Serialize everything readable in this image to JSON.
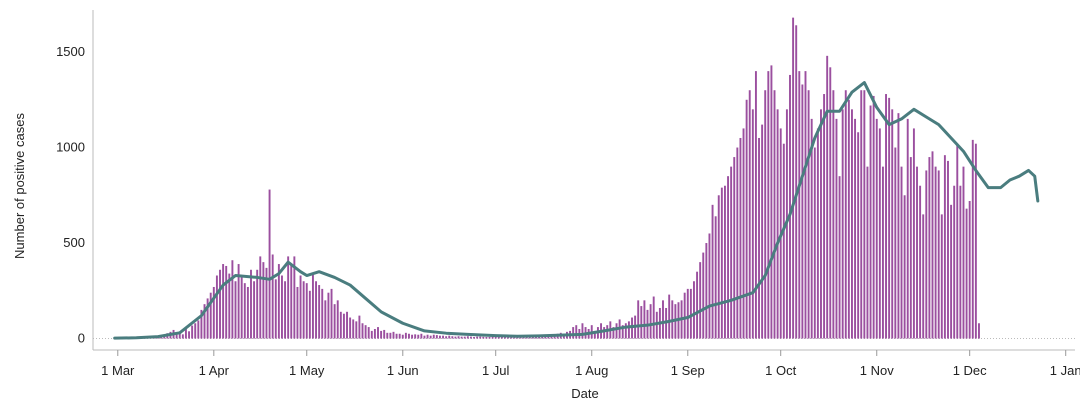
{
  "chart_data": {
    "type": "bar",
    "xlabel": "Date",
    "ylabel": "Number of positive cases",
    "xlim": [
      "2020-02-22",
      "2021-01-04"
    ],
    "ylim": [
      -60,
      1720
    ],
    "x_ticks": [
      {
        "date": "2020-03-01",
        "label": "1 Mar"
      },
      {
        "date": "2020-04-01",
        "label": "1 Apr"
      },
      {
        "date": "2020-05-01",
        "label": "1 May"
      },
      {
        "date": "2020-06-01",
        "label": "1 Jun"
      },
      {
        "date": "2020-07-01",
        "label": "1 Jul"
      },
      {
        "date": "2020-08-01",
        "label": "1 Aug"
      },
      {
        "date": "2020-09-01",
        "label": "1 Sep"
      },
      {
        "date": "2020-10-01",
        "label": "1 Oct"
      },
      {
        "date": "2020-11-01",
        "label": "1 Nov"
      },
      {
        "date": "2020-12-01",
        "label": "1 Dec"
      },
      {
        "date": "2021-01-01",
        "label": "1 Jan"
      }
    ],
    "y_ticks": [
      {
        "value": 0,
        "label": "0"
      },
      {
        "value": 500,
        "label": "500"
      },
      {
        "value": 1000,
        "label": "1000"
      },
      {
        "value": 1500,
        "label": "1500"
      }
    ],
    "series": [
      {
        "type": "bar",
        "color": "#9b4f9f",
        "start_date": "2020-02-29",
        "values": [
          2,
          3,
          3,
          3,
          4,
          4,
          5,
          5,
          6,
          6,
          7,
          8,
          8,
          9,
          10,
          12,
          18,
          28,
          35,
          45,
          34,
          28,
          22,
          55,
          38,
          68,
          80,
          95,
          150,
          180,
          210,
          240,
          270,
          330,
          360,
          390,
          380,
          340,
          410,
          300,
          390,
          320,
          290,
          270,
          360,
          300,
          360,
          430,
          400,
          370,
          780,
          440,
          310,
          390,
          330,
          300,
          430,
          390,
          430,
          270,
          330,
          300,
          290,
          250,
          340,
          300,
          280,
          260,
          200,
          240,
          260,
          180,
          200,
          140,
          130,
          140,
          110,
          100,
          90,
          120,
          80,
          70,
          60,
          40,
          50,
          60,
          40,
          45,
          30,
          30,
          35,
          25,
          25,
          20,
          30,
          25,
          20,
          22,
          20,
          25,
          15,
          20,
          15,
          20,
          18,
          15,
          15,
          12,
          15,
          12,
          10,
          12,
          10,
          10,
          12,
          10,
          8,
          10,
          10,
          9,
          8,
          8,
          9,
          8,
          10,
          9,
          8,
          10,
          12,
          10,
          12,
          14,
          15,
          14,
          12,
          16,
          18,
          15,
          20,
          18,
          20,
          15,
          20,
          25,
          30,
          25,
          35,
          40,
          60,
          70,
          50,
          80,
          60,
          50,
          70,
          40,
          60,
          80,
          60,
          70,
          90,
          60,
          80,
          100,
          70,
          80,
          90,
          110,
          120,
          200,
          170,
          200,
          150,
          180,
          220,
          140,
          160,
          200,
          160,
          230,
          200,
          180,
          190,
          200,
          240,
          260,
          260,
          300,
          350,
          400,
          450,
          500,
          550,
          700,
          640,
          750,
          790,
          800,
          850,
          900,
          950,
          1000,
          1050,
          1100,
          1250,
          1300,
          1200,
          1400,
          1050,
          1120,
          1300,
          1400,
          1430,
          1300,
          1200,
          1100,
          1020,
          1200,
          1380,
          1680,
          1640,
          1400,
          1330,
          1400,
          1300,
          1150,
          1000,
          1100,
          1200,
          1280,
          1480,
          1420,
          1300,
          1150,
          850,
          1200,
          1300,
          1250,
          1200,
          1150,
          1080,
          1300,
          1300,
          900,
          1220,
          1270,
          1150,
          1100,
          900,
          1280,
          1260,
          1200,
          1000,
          1180,
          900,
          750,
          1150,
          950,
          1100,
          900,
          800,
          650,
          880,
          950,
          980,
          900,
          880,
          650,
          960,
          930,
          700,
          800,
          1020,
          800,
          900,
          680,
          720,
          1040,
          1020,
          80
        ]
      },
      {
        "type": "line",
        "name": "",
        "color": "#4a7d7f",
        "points": [
          [
            "2020-02-29",
            2
          ],
          [
            "2020-03-07",
            4
          ],
          [
            "2020-03-14",
            10
          ],
          [
            "2020-03-21",
            30
          ],
          [
            "2020-03-28",
            120
          ],
          [
            "2020-04-04",
            280
          ],
          [
            "2020-04-08",
            330
          ],
          [
            "2020-04-15",
            320
          ],
          [
            "2020-04-19",
            310
          ],
          [
            "2020-04-22",
            340
          ],
          [
            "2020-04-25",
            400
          ],
          [
            "2020-04-29",
            350
          ],
          [
            "2020-05-01",
            330
          ],
          [
            "2020-05-05",
            350
          ],
          [
            "2020-05-10",
            320
          ],
          [
            "2020-05-15",
            280
          ],
          [
            "2020-05-20",
            210
          ],
          [
            "2020-05-25",
            140
          ],
          [
            "2020-06-01",
            80
          ],
          [
            "2020-06-08",
            40
          ],
          [
            "2020-06-15",
            28
          ],
          [
            "2020-06-22",
            22
          ],
          [
            "2020-07-01",
            15
          ],
          [
            "2020-07-08",
            12
          ],
          [
            "2020-07-15",
            14
          ],
          [
            "2020-07-22",
            18
          ],
          [
            "2020-07-29",
            22
          ],
          [
            "2020-08-05",
            40
          ],
          [
            "2020-08-12",
            60
          ],
          [
            "2020-08-19",
            70
          ],
          [
            "2020-08-26",
            90
          ],
          [
            "2020-09-01",
            110
          ],
          [
            "2020-09-08",
            170
          ],
          [
            "2020-09-15",
            200
          ],
          [
            "2020-09-22",
            240
          ],
          [
            "2020-09-26",
            330
          ],
          [
            "2020-09-30",
            500
          ],
          [
            "2020-10-04",
            650
          ],
          [
            "2020-10-08",
            850
          ],
          [
            "2020-10-12",
            1050
          ],
          [
            "2020-10-16",
            1190
          ],
          [
            "2020-10-20",
            1190
          ],
          [
            "2020-10-24",
            1290
          ],
          [
            "2020-10-28",
            1340
          ],
          [
            "2020-11-01",
            1210
          ],
          [
            "2020-11-05",
            1120
          ],
          [
            "2020-11-09",
            1150
          ],
          [
            "2020-11-13",
            1200
          ],
          [
            "2020-11-17",
            1160
          ],
          [
            "2020-11-21",
            1120
          ],
          [
            "2020-11-25",
            1050
          ],
          [
            "2020-11-29",
            980
          ],
          [
            "2020-12-03",
            880
          ],
          [
            "2020-12-07",
            790
          ],
          [
            "2020-12-11",
            790
          ],
          [
            "2020-12-14",
            830
          ],
          [
            "2020-12-17",
            850
          ],
          [
            "2020-12-20",
            880
          ],
          [
            "2020-12-22",
            850
          ],
          [
            "2020-12-23",
            720
          ]
        ]
      }
    ]
  }
}
